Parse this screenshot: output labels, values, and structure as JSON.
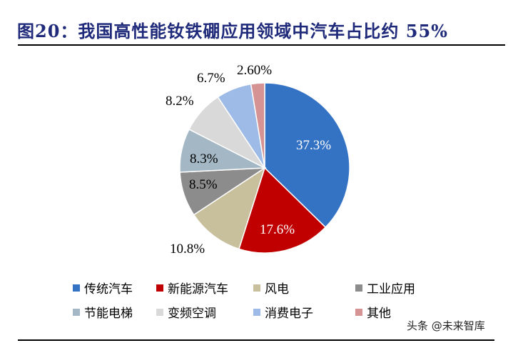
{
  "title": "图20：我国高性能钕铁硼应用领域中汽车占比约 55%",
  "watermark": "头条 @未来智库",
  "chart_data": {
    "type": "pie",
    "title": "图20：我国高性能钕铁硼应用领域中汽车占比约 55%",
    "categories": [
      "传统汽车",
      "新能源汽车",
      "风电",
      "工业应用",
      "节能电梯",
      "变频空调",
      "消费电子",
      "其他"
    ],
    "values": [
      37.3,
      17.6,
      10.8,
      8.5,
      8.3,
      8.2,
      6.7,
      2.6
    ],
    "labels": [
      "37.3%",
      "17.6%",
      "10.8%",
      "8.5%",
      "8.3%",
      "8.2%",
      "6.7%",
      "2.60%"
    ],
    "colors": [
      "#3472c4",
      "#c00000",
      "#c8bf9c",
      "#8c8c8c",
      "#a3b7c4",
      "#d9d9d9",
      "#9dbbe6",
      "#d69393"
    ],
    "start_angle": "12 o'clock, clockwise",
    "legend_position": "bottom"
  },
  "legend": [
    {
      "label": "传统汽车",
      "color": "#3472c4"
    },
    {
      "label": "新能源汽车",
      "color": "#c00000"
    },
    {
      "label": "风电",
      "color": "#c8bf9c"
    },
    {
      "label": "工业应用",
      "color": "#8c8c8c"
    },
    {
      "label": "节能电梯",
      "color": "#a3b7c4"
    },
    {
      "label": "变频空调",
      "color": "#d9d9d9"
    },
    {
      "label": "消费电子",
      "color": "#9dbbe6"
    },
    {
      "label": "其他",
      "color": "#d69393"
    }
  ]
}
